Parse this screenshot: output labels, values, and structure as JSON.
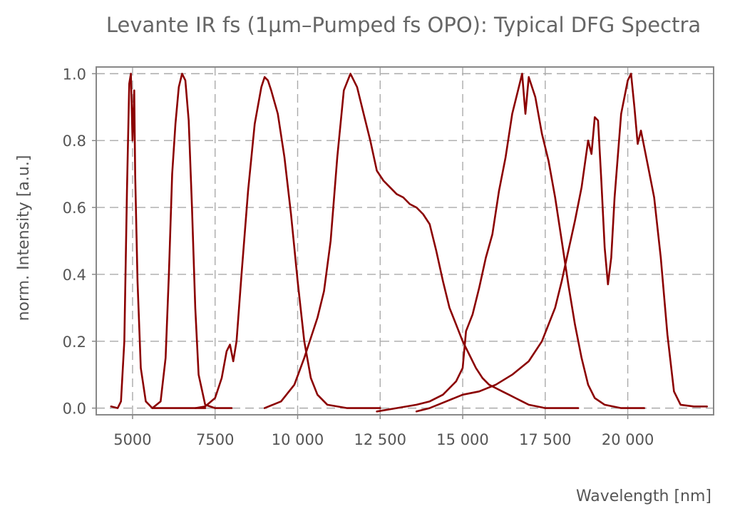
{
  "chart_data": {
    "type": "line",
    "title": "Levante IR fs (1µm–Pumped fs OPO): Typical DFG Spectra",
    "xlabel": "Wavelength [nm]",
    "ylabel": "norm. Intensity [a.u.]",
    "xlim": [
      3900,
      22600
    ],
    "ylim": [
      -0.02,
      1.02
    ],
    "grid": true,
    "x_ticks": [
      5000,
      7500,
      10000,
      12500,
      15000,
      17500,
      20000
    ],
    "x_tick_labels": [
      "5000",
      "7500",
      "10 000",
      "12 500",
      "15 000",
      "17 500",
      "20 000"
    ],
    "y_ticks": [
      0.0,
      0.2,
      0.4,
      0.6,
      0.8,
      1.0
    ],
    "y_tick_labels": [
      "0.0",
      "0.2",
      "0.4",
      "0.6",
      "0.8",
      "1.0"
    ],
    "color": "#8b0000",
    "series": [
      {
        "points": [
          [
            4350,
            0.005
          ],
          [
            4550,
            0.0
          ],
          [
            4650,
            0.02
          ],
          [
            4750,
            0.2
          ],
          [
            4830,
            0.65
          ],
          [
            4900,
            0.97
          ],
          [
            4950,
            1.0
          ],
          [
            5000,
            0.8
          ],
          [
            5050,
            0.95
          ],
          [
            5080,
            0.7
          ],
          [
            5150,
            0.38
          ],
          [
            5250,
            0.12
          ],
          [
            5400,
            0.02
          ],
          [
            5600,
            0.0
          ],
          [
            6200,
            0.0
          ],
          [
            7200,
            0.0
          ]
        ]
      },
      {
        "points": [
          [
            5600,
            0.0
          ],
          [
            5850,
            0.02
          ],
          [
            6000,
            0.15
          ],
          [
            6100,
            0.4
          ],
          [
            6200,
            0.7
          ],
          [
            6300,
            0.85
          ],
          [
            6400,
            0.96
          ],
          [
            6500,
            1.0
          ],
          [
            6600,
            0.98
          ],
          [
            6700,
            0.86
          ],
          [
            6800,
            0.6
          ],
          [
            6900,
            0.3
          ],
          [
            7000,
            0.1
          ],
          [
            7200,
            0.01
          ],
          [
            7500,
            0.0
          ],
          [
            8000,
            0.0
          ]
        ]
      },
      {
        "points": [
          [
            6900,
            0.0
          ],
          [
            7200,
            0.005
          ],
          [
            7500,
            0.03
          ],
          [
            7700,
            0.09
          ],
          [
            7850,
            0.17
          ],
          [
            7950,
            0.19
          ],
          [
            8050,
            0.14
          ],
          [
            8150,
            0.2
          ],
          [
            8300,
            0.4
          ],
          [
            8500,
            0.65
          ],
          [
            8700,
            0.85
          ],
          [
            8900,
            0.96
          ],
          [
            9000,
            0.99
          ],
          [
            9100,
            0.98
          ],
          [
            9200,
            0.95
          ],
          [
            9400,
            0.88
          ],
          [
            9600,
            0.75
          ],
          [
            9800,
            0.58
          ],
          [
            10000,
            0.38
          ],
          [
            10200,
            0.2
          ],
          [
            10400,
            0.09
          ],
          [
            10600,
            0.04
          ],
          [
            10900,
            0.01
          ],
          [
            11500,
            0.0
          ],
          [
            12500,
            0.0
          ]
        ]
      },
      {
        "points": [
          [
            9000,
            0.0
          ],
          [
            9500,
            0.02
          ],
          [
            9900,
            0.07
          ],
          [
            10200,
            0.15
          ],
          [
            10400,
            0.21
          ],
          [
            10600,
            0.27
          ],
          [
            10800,
            0.35
          ],
          [
            11000,
            0.5
          ],
          [
            11200,
            0.75
          ],
          [
            11400,
            0.95
          ],
          [
            11600,
            1.0
          ],
          [
            11800,
            0.96
          ],
          [
            12000,
            0.88
          ],
          [
            12200,
            0.8
          ],
          [
            12400,
            0.71
          ],
          [
            12600,
            0.68
          ],
          [
            12800,
            0.66
          ],
          [
            13000,
            0.64
          ],
          [
            13200,
            0.63
          ],
          [
            13400,
            0.61
          ],
          [
            13600,
            0.6
          ],
          [
            13800,
            0.58
          ],
          [
            14000,
            0.55
          ],
          [
            14200,
            0.47
          ],
          [
            14400,
            0.38
          ],
          [
            14600,
            0.3
          ],
          [
            14800,
            0.25
          ],
          [
            15000,
            0.2
          ],
          [
            15200,
            0.16
          ],
          [
            15400,
            0.12
          ],
          [
            15600,
            0.09
          ],
          [
            15800,
            0.07
          ],
          [
            16000,
            0.06
          ],
          [
            16200,
            0.05
          ],
          [
            16400,
            0.04
          ],
          [
            16600,
            0.03
          ],
          [
            16800,
            0.02
          ],
          [
            17000,
            0.01
          ],
          [
            17500,
            0.0
          ],
          [
            18500,
            0.0
          ]
        ]
      },
      {
        "points": [
          [
            12400,
            -0.01
          ],
          [
            13000,
            0.0
          ],
          [
            13600,
            0.01
          ],
          [
            14000,
            0.02
          ],
          [
            14400,
            0.04
          ],
          [
            14800,
            0.08
          ],
          [
            15000,
            0.12
          ],
          [
            15100,
            0.23
          ],
          [
            15300,
            0.28
          ],
          [
            15500,
            0.36
          ],
          [
            15700,
            0.45
          ],
          [
            15900,
            0.52
          ],
          [
            16100,
            0.65
          ],
          [
            16300,
            0.75
          ],
          [
            16500,
            0.88
          ],
          [
            16700,
            0.96
          ],
          [
            16800,
            1.0
          ],
          [
            16900,
            0.88
          ],
          [
            17000,
            0.99
          ],
          [
            17200,
            0.93
          ],
          [
            17400,
            0.82
          ],
          [
            17600,
            0.74
          ],
          [
            17800,
            0.63
          ],
          [
            18000,
            0.5
          ],
          [
            18200,
            0.37
          ],
          [
            18400,
            0.25
          ],
          [
            18600,
            0.15
          ],
          [
            18800,
            0.07
          ],
          [
            19000,
            0.03
          ],
          [
            19300,
            0.01
          ],
          [
            19800,
            0.0
          ],
          [
            20500,
            0.0
          ]
        ]
      },
      {
        "points": [
          [
            13600,
            -0.01
          ],
          [
            14000,
            0.0
          ],
          [
            14500,
            0.02
          ],
          [
            15000,
            0.04
          ],
          [
            15500,
            0.05
          ],
          [
            16000,
            0.07
          ],
          [
            16500,
            0.1
          ],
          [
            17000,
            0.14
          ],
          [
            17400,
            0.2
          ],
          [
            17800,
            0.3
          ],
          [
            18000,
            0.38
          ],
          [
            18200,
            0.47
          ],
          [
            18400,
            0.56
          ],
          [
            18600,
            0.66
          ],
          [
            18800,
            0.8
          ],
          [
            18900,
            0.76
          ],
          [
            19000,
            0.87
          ],
          [
            19100,
            0.86
          ],
          [
            19200,
            0.68
          ],
          [
            19300,
            0.48
          ],
          [
            19400,
            0.37
          ],
          [
            19500,
            0.45
          ],
          [
            19600,
            0.63
          ],
          [
            19800,
            0.88
          ],
          [
            20000,
            0.98
          ],
          [
            20100,
            1.0
          ],
          [
            20200,
            0.9
          ],
          [
            20300,
            0.79
          ],
          [
            20400,
            0.83
          ],
          [
            20600,
            0.73
          ],
          [
            20800,
            0.63
          ],
          [
            21000,
            0.45
          ],
          [
            21200,
            0.22
          ],
          [
            21400,
            0.05
          ],
          [
            21600,
            0.01
          ],
          [
            22000,
            0.005
          ],
          [
            22400,
            0.005
          ]
        ]
      }
    ]
  }
}
